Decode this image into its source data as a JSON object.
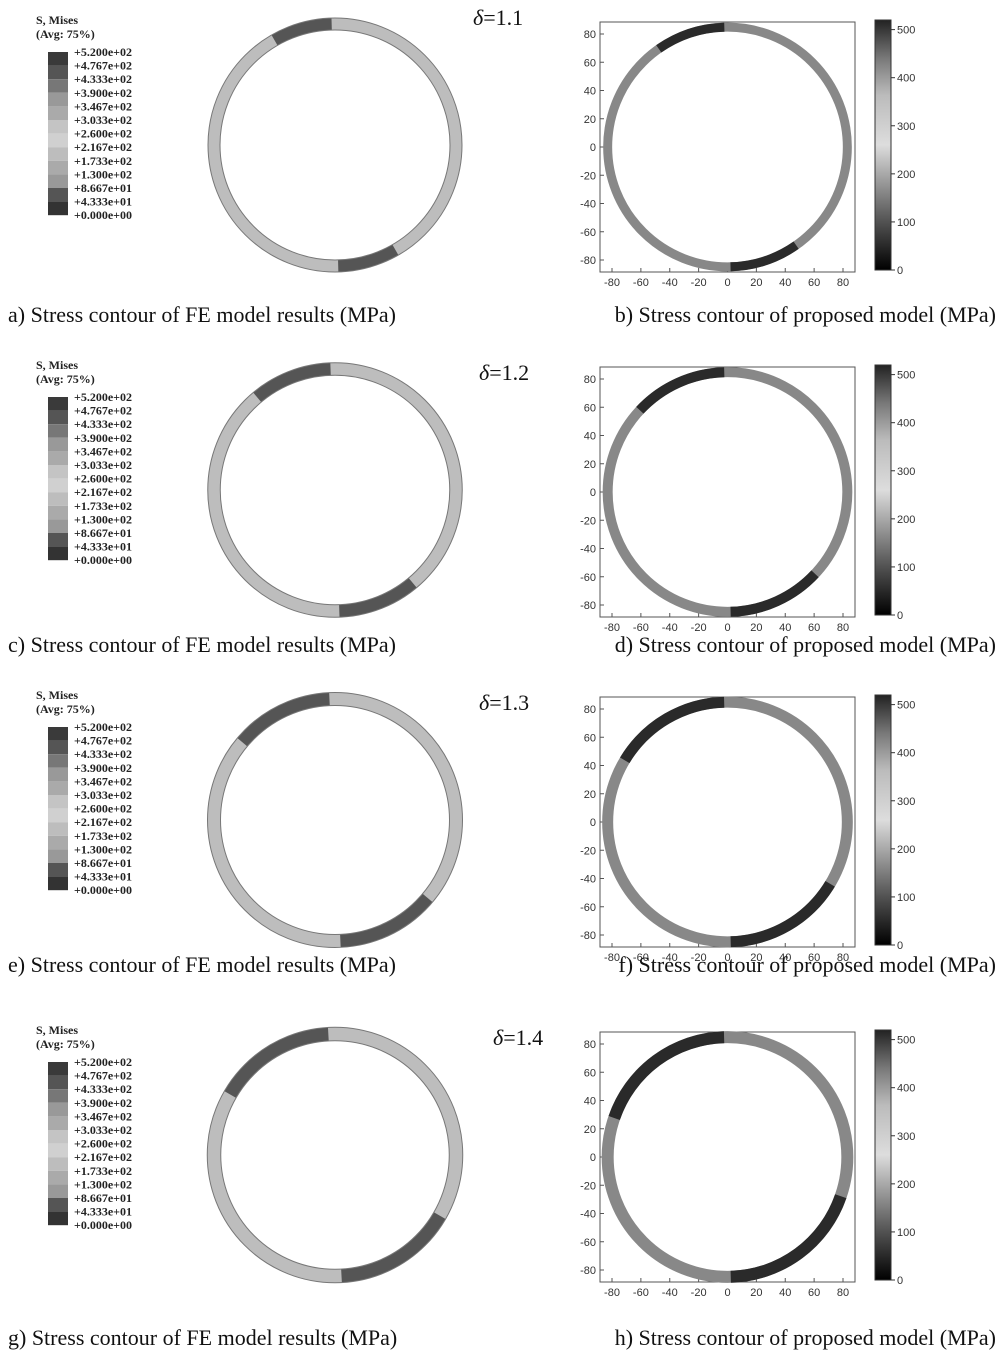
{
  "legend": {
    "title": "S, Mises",
    "avg": "(Avg: 75%)",
    "labels": [
      "+5.200e+02",
      "+4.767e+02",
      "+4.333e+02",
      "+3.900e+02",
      "+3.467e+02",
      "+3.033e+02",
      "+2.600e+02",
      "+2.167e+02",
      "+1.733e+02",
      "+1.300e+02",
      "+8.667e+01",
      "+4.333e+01",
      "+0.000e+00"
    ]
  },
  "plot": {
    "xticks": [
      -80,
      -60,
      -40,
      -20,
      0,
      20,
      40,
      60,
      80
    ],
    "yticks": [
      80,
      60,
      40,
      20,
      0,
      -20,
      -40,
      -60,
      -80
    ],
    "colorbar_ticks": [
      0,
      100,
      200,
      300,
      400,
      500
    ]
  },
  "delta_symbol": "δ",
  "panels": [
    {
      "delta": "=1.1",
      "fe_caption": "a) Stress contour of FE model results (MPa)",
      "model_caption": "b) Stress contour of proposed model (MPa)"
    },
    {
      "delta": "=1.2",
      "fe_caption": "c) Stress contour of FE model results (MPa)",
      "model_caption": "d) Stress contour of proposed model (MPa)"
    },
    {
      "delta": "=1.3",
      "fe_caption": "e) Stress contour of FE model results (MPa)",
      "model_caption": "f) Stress contour of proposed model (MPa)"
    },
    {
      "delta": "=1.4",
      "fe_caption": "g) Stress contour of FE model results (MPa)",
      "model_caption": "h) Stress contour of proposed model (MPa)"
    }
  ]
}
